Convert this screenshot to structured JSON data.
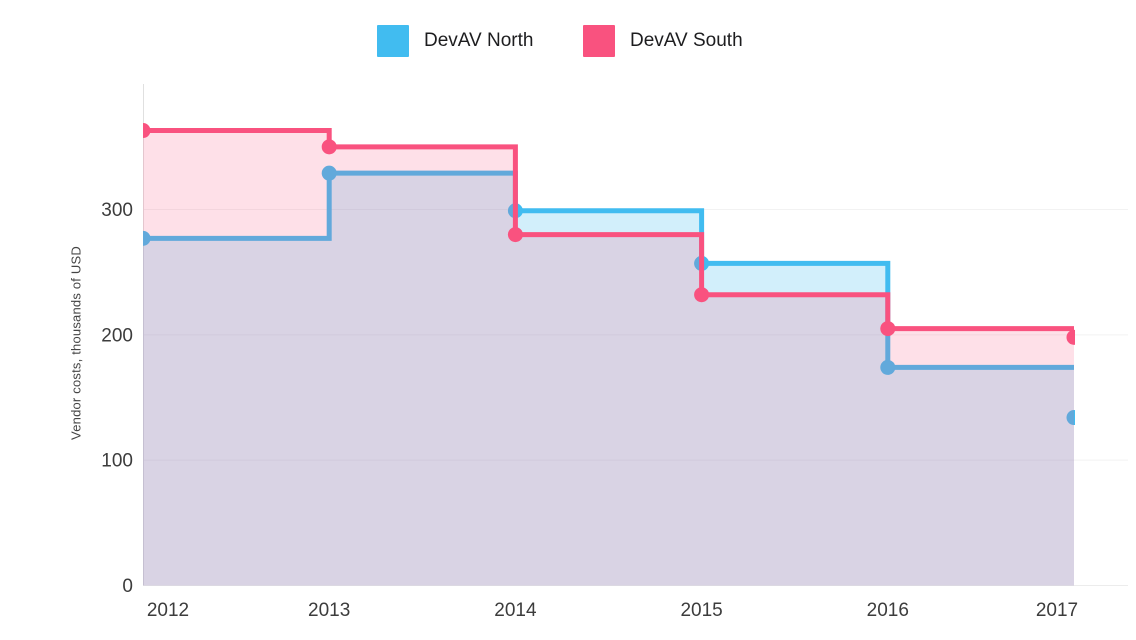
{
  "legend": {
    "items": [
      {
        "label": "DevAV North"
      },
      {
        "label": "DevAV South"
      }
    ]
  },
  "chart_data": {
    "type": "area",
    "variant": "step-after",
    "title": "",
    "x": [
      2012,
      2013,
      2014,
      2015,
      2016,
      2017
    ],
    "xticklabels": [
      "2012",
      "2013",
      "2014",
      "2015",
      "2016",
      "2017"
    ],
    "series": [
      {
        "name": "DevAV North",
        "color": "#41BCF0",
        "fill_opacity": 0.24,
        "values": [
          277,
          329,
          299,
          257,
          174,
          134
        ]
      },
      {
        "name": "DevAV South",
        "color": "#F9527F",
        "fill_opacity": 0.18,
        "values": [
          363,
          350,
          280,
          232,
          205,
          198
        ]
      }
    ],
    "xlabel": "",
    "ylabel": "Vendor costs, thousands of USD",
    "yticks": [
      0,
      100,
      200,
      300
    ],
    "ylim": [
      0,
      400
    ],
    "grid": "horizontal",
    "legend_position": "top-center",
    "marker": "circle",
    "notes": "2017 values shown as clipped markers at right plot edge; lines hold previous year value to edge"
  },
  "colors": {
    "background": "#ffffff",
    "grid": "#f2f2f2",
    "baseline": "#ececec",
    "axis_line": "#e0e0e0",
    "axis_text": "#3c3c3c"
  }
}
